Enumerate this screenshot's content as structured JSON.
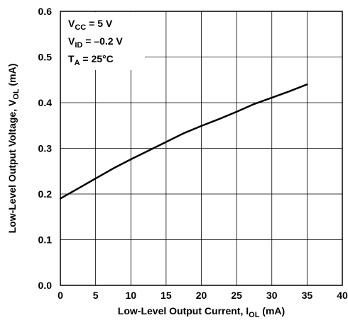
{
  "chart_data": {
    "type": "line",
    "title": "",
    "xlabel": {
      "main": "Low-Level Output Current, I",
      "sub": "OL",
      "suffix": " (mA)"
    },
    "ylabel": {
      "main": "Low-Level Output Voltage, V",
      "sub": "OL",
      "suffix": " (mA)"
    },
    "xlim": [
      0,
      40
    ],
    "ylim": [
      0,
      0.6
    ],
    "xticks": [
      0,
      5,
      10,
      15,
      20,
      25,
      30,
      35,
      40
    ],
    "xtick_labels": [
      "0",
      "5",
      "10",
      "15",
      "20",
      "25",
      "30",
      "35",
      "40"
    ],
    "yticks": [
      0,
      0.1,
      0.2,
      0.3,
      0.4,
      0.5,
      0.6
    ],
    "ytick_labels": [
      "0.0",
      "0.1",
      "0.2",
      "0.3",
      "0.4",
      "0.5",
      "0.6"
    ],
    "grid": true,
    "annotations": [
      {
        "main": "V",
        "sub": "CC",
        "suffix": " = 5 V"
      },
      {
        "main": "V",
        "sub": "ID",
        "suffix": " = –0.2 V"
      },
      {
        "main": "T",
        "sub": "A",
        "suffix": " = 25°C"
      }
    ],
    "series": [
      {
        "x": [
          0,
          2.5,
          5,
          7.5,
          10,
          12.5,
          15,
          17.5,
          20,
          22.5,
          25,
          27.5,
          30,
          32.5,
          35
        ],
        "y": [
          0.19,
          0.212,
          0.234,
          0.256,
          0.276,
          0.295,
          0.314,
          0.333,
          0.349,
          0.364,
          0.38,
          0.397,
          0.411,
          0.425,
          0.44
        ]
      }
    ]
  }
}
